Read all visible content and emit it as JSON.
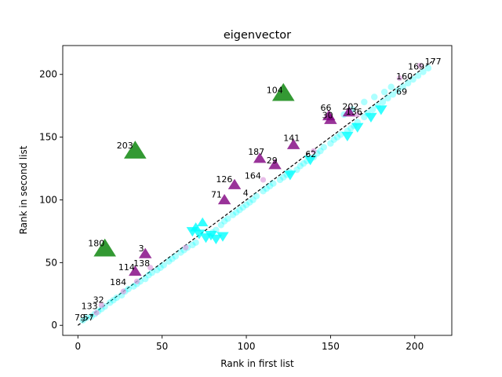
{
  "chart_data": {
    "type": "scatter",
    "title": "eigenvector",
    "xlabel": "Rank in first list",
    "ylabel": "Rank in second list",
    "xlim": [
      -9,
      222
    ],
    "ylim": [
      -8,
      223
    ],
    "xticks": [
      "0",
      "50",
      "100",
      "150",
      "200"
    ],
    "yticks": [
      "0",
      "50",
      "100",
      "150",
      "200"
    ],
    "xtick_values": [
      0,
      50,
      100,
      150,
      200
    ],
    "ytick_values": [
      0,
      50,
      100,
      150,
      200
    ],
    "reference_line": {
      "x": [
        0,
        212
      ],
      "y": [
        0,
        212
      ],
      "style": "dashed",
      "color": "#000000"
    },
    "colors": {
      "near_diagonal": "#00ffff",
      "down_triangle": "#00ffff",
      "up_purple": "#800080",
      "up_green": "#008000",
      "small_purple": "#dda0dd"
    },
    "series": [
      {
        "marker": "circle",
        "color": "#00ffff",
        "points": [
          [
            3,
            4
          ],
          [
            5,
            6
          ],
          [
            8,
            7
          ],
          [
            10,
            9
          ],
          [
            12,
            11
          ],
          [
            14,
            13
          ],
          [
            16,
            15
          ],
          [
            19,
            18
          ],
          [
            21,
            20
          ],
          [
            23,
            22
          ],
          [
            26,
            24
          ],
          [
            28,
            27
          ],
          [
            30,
            29
          ],
          [
            33,
            31
          ],
          [
            35,
            33
          ],
          [
            37,
            35
          ],
          [
            40,
            37
          ],
          [
            42,
            40
          ],
          [
            44,
            42
          ],
          [
            47,
            44
          ],
          [
            49,
            46
          ],
          [
            51,
            48
          ],
          [
            54,
            51
          ],
          [
            56,
            53
          ],
          [
            58,
            55
          ],
          [
            61,
            58
          ],
          [
            63,
            60
          ],
          [
            65,
            62
          ],
          [
            68,
            64
          ],
          [
            70,
            66
          ],
          [
            80,
            74
          ],
          [
            82,
            76
          ],
          [
            85,
            80
          ],
          [
            87,
            83
          ],
          [
            89,
            85
          ],
          [
            92,
            88
          ],
          [
            94,
            90
          ],
          [
            96,
            92
          ],
          [
            98,
            94
          ],
          [
            100,
            96
          ],
          [
            102,
            98
          ],
          [
            104,
            100
          ],
          [
            106,
            103
          ],
          [
            110,
            107
          ],
          [
            112,
            109
          ],
          [
            114,
            111
          ],
          [
            116,
            113
          ],
          [
            120,
            116
          ],
          [
            122,
            118
          ],
          [
            124,
            120
          ],
          [
            126,
            122
          ],
          [
            130,
            124
          ],
          [
            132,
            127
          ],
          [
            134,
            129
          ],
          [
            136,
            131
          ],
          [
            140,
            134
          ],
          [
            142,
            137
          ],
          [
            144,
            139
          ],
          [
            146,
            142
          ],
          [
            150,
            145
          ],
          [
            152,
            148
          ],
          [
            154,
            150
          ],
          [
            156,
            152
          ],
          [
            160,
            155
          ],
          [
            162,
            157
          ],
          [
            164,
            159
          ],
          [
            166,
            162
          ],
          [
            170,
            166
          ],
          [
            172,
            169
          ],
          [
            175,
            172
          ],
          [
            178,
            175
          ],
          [
            181,
            178
          ],
          [
            184,
            181
          ],
          [
            187,
            184
          ],
          [
            190,
            187
          ],
          [
            193,
            190
          ],
          [
            196,
            193
          ],
          [
            199,
            196
          ],
          [
            202,
            199
          ],
          [
            205,
            202
          ],
          [
            208,
            205
          ],
          [
            170,
            178
          ],
          [
            176,
            182
          ],
          [
            182,
            186
          ],
          [
            186,
            190
          ],
          [
            158,
            168
          ],
          [
            163,
            172
          ]
        ]
      },
      {
        "marker": "triangle-down",
        "color": "#00ffff",
        "points": [
          [
            68,
            75
          ],
          [
            72,
            73
          ],
          [
            76,
            70
          ],
          [
            79,
            72
          ],
          [
            82,
            69
          ],
          [
            86,
            71
          ],
          [
            126,
            120
          ],
          [
            138,
            132
          ],
          [
            160,
            151
          ],
          [
            166,
            158
          ],
          [
            174,
            166
          ],
          [
            180,
            172
          ]
        ]
      },
      {
        "marker": "triangle-up-small",
        "color": "#00ffff",
        "points": [
          [
            70,
            78
          ],
          [
            74,
            82
          ]
        ]
      },
      {
        "marker": "triangle-up",
        "color": "#800080",
        "points": [
          [
            34,
            43
          ],
          [
            40,
            57
          ],
          [
            87,
            100
          ],
          [
            93,
            112
          ],
          [
            108,
            133
          ],
          [
            117,
            128
          ],
          [
            128,
            144
          ],
          [
            149,
            167
          ],
          [
            150,
            164
          ],
          [
            161,
            170
          ]
        ]
      },
      {
        "marker": "triangle-up-large",
        "color": "#008000",
        "points": [
          [
            16,
            61
          ],
          [
            34,
            139
          ],
          [
            122,
            185
          ]
        ]
      },
      {
        "marker": "circle-small",
        "color": "#dda0dd",
        "points": [
          [
            11,
            10
          ],
          [
            14,
            16
          ],
          [
            27,
            27
          ],
          [
            35,
            35
          ],
          [
            43,
            46
          ],
          [
            64,
            62
          ],
          [
            110,
            116
          ],
          [
            140,
            139
          ],
          [
            166,
            168
          ],
          [
            191,
            197
          ],
          [
            203,
            207
          ]
        ]
      }
    ],
    "annotations": [
      {
        "text": "177",
        "x": 206,
        "y": 208
      },
      {
        "text": "169",
        "x": 196,
        "y": 204
      },
      {
        "text": "160",
        "x": 189,
        "y": 196
      },
      {
        "text": "69",
        "x": 189,
        "y": 184
      },
      {
        "text": "104",
        "x": 112,
        "y": 185
      },
      {
        "text": "66",
        "x": 144,
        "y": 171
      },
      {
        "text": "202",
        "x": 157,
        "y": 172
      },
      {
        "text": "30",
        "x": 145,
        "y": 165
      },
      {
        "text": "136",
        "x": 159,
        "y": 168
      },
      {
        "text": "141",
        "x": 122,
        "y": 147
      },
      {
        "text": "203",
        "x": 23,
        "y": 141
      },
      {
        "text": "62",
        "x": 135,
        "y": 134
      },
      {
        "text": "187",
        "x": 101,
        "y": 136
      },
      {
        "text": "29",
        "x": 112,
        "y": 129
      },
      {
        "text": "164",
        "x": 99,
        "y": 117
      },
      {
        "text": "126",
        "x": 82,
        "y": 114
      },
      {
        "text": "71",
        "x": 79,
        "y": 102
      },
      {
        "text": "4",
        "x": 98,
        "y": 103
      },
      {
        "text": "180",
        "x": 6,
        "y": 63
      },
      {
        "text": "3",
        "x": 36,
        "y": 59
      },
      {
        "text": "114",
        "x": 24,
        "y": 44
      },
      {
        "text": "138",
        "x": 33,
        "y": 47
      },
      {
        "text": "184",
        "x": 19,
        "y": 32
      },
      {
        "text": "32",
        "x": 9,
        "y": 18
      },
      {
        "text": "133",
        "x": 2,
        "y": 13
      },
      {
        "text": "57",
        "x": 3,
        "y": 4
      },
      {
        "text": "79",
        "x": -2,
        "y": 4
      }
    ]
  }
}
